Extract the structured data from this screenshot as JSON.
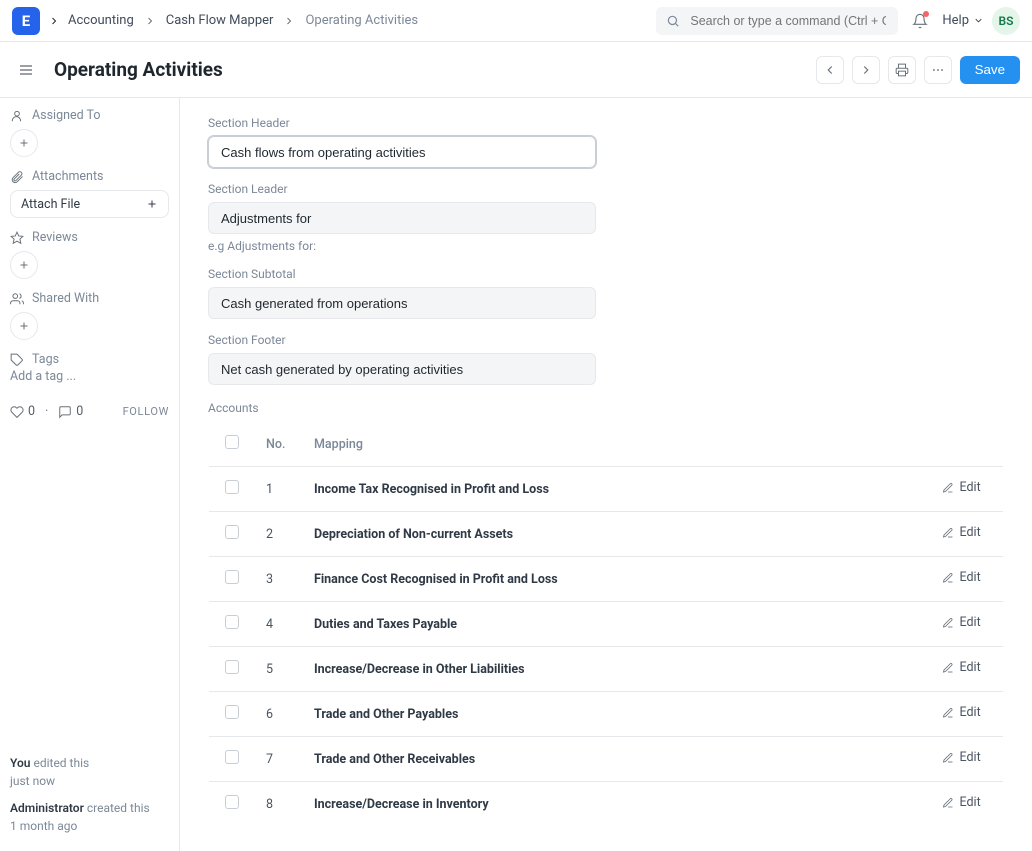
{
  "colors": {
    "primary": "#2490ef",
    "border": "#e6e8eb",
    "muted": "#7c8898"
  },
  "topbar": {
    "logo_letter": "E",
    "breadcrumb": [
      "Accounting",
      "Cash Flow Mapper",
      "Operating Activities"
    ],
    "search_placeholder": "Search or type a command (Ctrl + G)",
    "help_label": "Help",
    "avatar_initials": "BS"
  },
  "header": {
    "title": "Operating Activities",
    "save_label": "Save"
  },
  "sidebar": {
    "assigned_to": "Assigned To",
    "attachments": "Attachments",
    "attach_file": "Attach File",
    "reviews": "Reviews",
    "shared_with": "Shared With",
    "tags": "Tags",
    "add_tag": "Add a tag ...",
    "likes": "0",
    "comments": "0",
    "follow": "FOLLOW",
    "history": [
      {
        "who": "You",
        "what": "edited this",
        "when": "just now"
      },
      {
        "who": "Administrator",
        "what": "created this",
        "when": "1 month ago"
      }
    ]
  },
  "form": {
    "section_header": {
      "label": "Section Header",
      "value": "Cash flows from operating activities"
    },
    "section_leader": {
      "label": "Section Leader",
      "value": "Adjustments for",
      "hint": "e.g Adjustments for:"
    },
    "section_subtotal": {
      "label": "Section Subtotal",
      "value": "Cash generated from operations"
    },
    "section_footer": {
      "label": "Section Footer",
      "value": "Net cash generated by operating activities"
    }
  },
  "accounts": {
    "label": "Accounts",
    "columns": {
      "no": "No.",
      "mapping": "Mapping",
      "edit": "Edit"
    },
    "rows": [
      {
        "no": "1",
        "mapping": "Income Tax Recognised in Profit and Loss"
      },
      {
        "no": "2",
        "mapping": "Depreciation of Non-current Assets"
      },
      {
        "no": "3",
        "mapping": "Finance Cost Recognised in Profit and Loss"
      },
      {
        "no": "4",
        "mapping": "Duties and Taxes Payable"
      },
      {
        "no": "5",
        "mapping": "Increase/Decrease in Other Liabilities"
      },
      {
        "no": "6",
        "mapping": "Trade and Other Payables"
      },
      {
        "no": "7",
        "mapping": "Trade and Other Receivables"
      },
      {
        "no": "8",
        "mapping": "Increase/Decrease in Inventory"
      }
    ]
  }
}
